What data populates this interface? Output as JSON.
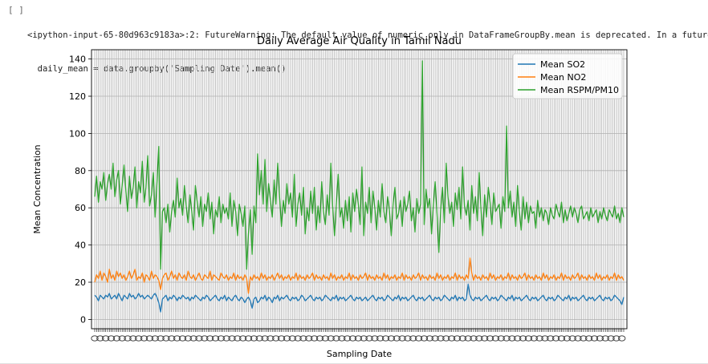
{
  "cell": {
    "prompt": "[ ]",
    "stderr_lines": [
      "<ipython-input-65-80d963c9183a>:2: FutureWarning: The default value of numeric_only in DataFrameGroupBy.mean is deprecated. In a future version, nu",
      "  daily_mean = data.groupby('Sampling Date').mean()"
    ]
  },
  "chart_data": {
    "type": "line",
    "title": "Daily Average Air Quality in Tamil Nadu",
    "xlabel": "Sampling Date",
    "ylabel": "Mean Concentration",
    "ylim": [
      -5,
      145
    ],
    "yticks": [
      0,
      20,
      40,
      60,
      80,
      100,
      120,
      140
    ],
    "grid": true,
    "legend_position": "top-right",
    "n_points": 290,
    "series": [
      {
        "name": "Mean SO2",
        "color": "#1f77b4",
        "values": [
          13,
          12,
          10,
          13,
          12,
          11,
          13,
          12,
          14,
          11,
          12,
          13,
          11,
          14,
          12,
          10,
          13,
          12,
          11,
          14,
          12,
          13,
          11,
          12,
          14,
          12,
          13,
          11,
          12,
          13,
          12,
          11,
          13,
          14,
          12,
          9,
          4,
          11,
          12,
          13,
          10,
          12,
          11,
          13,
          12,
          10,
          12,
          11,
          13,
          12,
          11,
          12,
          10,
          12,
          11,
          13,
          12,
          11,
          10,
          12,
          11,
          13,
          12,
          10,
          11,
          12,
          13,
          11,
          10,
          12,
          11,
          13,
          10,
          12,
          11,
          10,
          12,
          13,
          11,
          10,
          12,
          11,
          9,
          11,
          12,
          10,
          6,
          11,
          12,
          9,
          10,
          12,
          11,
          13,
          10,
          12,
          11,
          9,
          12,
          11,
          13,
          10,
          12,
          11,
          12,
          13,
          11,
          10,
          12,
          11,
          12,
          10,
          11,
          13,
          12,
          10,
          11,
          12,
          13,
          11,
          10,
          12,
          11,
          12,
          10,
          11,
          13,
          12,
          11,
          10,
          12,
          11,
          13,
          10,
          12,
          11,
          12,
          10,
          11,
          12,
          13,
          11,
          10,
          12,
          11,
          12,
          10,
          11,
          12,
          10,
          11,
          12,
          13,
          11,
          10,
          12,
          11,
          12,
          10,
          11,
          13,
          12,
          11,
          10,
          12,
          11,
          13,
          10,
          12,
          11,
          12,
          10,
          11,
          12,
          13,
          11,
          10,
          12,
          11,
          12,
          10,
          11,
          12,
          13,
          11,
          10,
          12,
          11,
          12,
          10,
          11,
          13,
          12,
          11,
          10,
          12,
          11,
          13,
          10,
          12,
          11,
          12,
          10,
          11,
          12,
          13,
          11,
          10,
          12,
          11,
          12,
          10,
          11,
          12,
          13,
          11,
          10,
          12,
          11,
          12,
          10,
          11,
          13,
          12,
          11,
          10,
          12,
          11,
          13,
          10,
          12,
          11,
          12,
          10,
          11,
          12,
          13,
          11,
          10,
          12,
          11,
          12,
          10,
          11,
          12,
          13,
          11,
          10,
          12,
          11,
          12,
          10,
          11,
          13,
          12,
          11,
          10,
          12,
          11,
          13,
          10,
          12,
          11,
          12,
          10,
          11,
          12,
          13,
          11,
          10,
          12,
          11,
          12,
          10,
          11,
          12,
          13,
          11,
          10,
          12,
          11,
          12,
          10,
          11,
          13,
          12,
          11,
          10,
          8,
          12,
          11,
          13,
          12
        ],
        "overrides": {
          "204": 19
        }
      },
      {
        "name": "Mean NO2",
        "color": "#ff7f0e",
        "values": [
          20,
          24,
          22,
          26,
          21,
          25,
          23,
          20,
          27,
          22,
          24,
          21,
          26,
          23,
          25,
          22,
          24,
          21,
          23,
          26,
          22,
          24,
          27,
          21,
          23,
          22,
          25,
          20,
          24,
          23,
          21,
          26,
          22,
          24,
          23,
          21,
          16,
          22,
          24,
          25,
          21,
          23,
          26,
          22,
          24,
          21,
          25,
          23,
          22,
          24,
          21,
          26,
          23,
          22,
          24,
          21,
          23,
          25,
          22,
          21,
          24,
          23,
          22,
          26,
          21,
          24,
          23,
          22,
          21,
          25,
          23,
          22,
          24,
          21,
          23,
          22,
          25,
          21,
          24,
          22,
          23,
          21,
          24,
          22,
          14,
          23,
          21,
          24,
          22,
          23,
          21,
          25,
          22,
          24,
          21,
          23,
          22,
          24,
          21,
          23,
          25,
          22,
          24,
          21,
          23,
          22,
          24,
          21,
          23,
          22,
          25,
          21,
          24,
          22,
          23,
          21,
          24,
          22,
          23,
          25,
          21,
          24,
          22,
          23,
          21,
          24,
          22,
          23,
          21,
          25,
          22,
          24,
          21,
          23,
          22,
          24,
          21,
          23,
          22,
          25,
          21,
          24,
          22,
          23,
          21,
          24,
          22,
          23,
          25,
          21,
          24,
          22,
          23,
          21,
          24,
          22,
          23,
          21,
          25,
          22,
          24,
          21,
          23,
          22,
          24,
          21,
          23,
          22,
          25,
          21,
          24,
          22,
          23,
          21,
          24,
          22,
          23,
          25,
          21,
          24,
          22,
          23,
          21,
          24,
          22,
          23,
          21,
          25,
          22,
          24,
          21,
          23,
          22,
          24,
          21,
          23,
          22,
          25,
          21,
          24,
          22,
          23,
          21,
          24,
          22,
          33,
          25,
          21,
          24,
          22,
          23,
          21,
          24,
          22,
          23,
          21,
          25,
          22,
          24,
          21,
          23,
          22,
          24,
          21,
          23,
          22,
          25,
          21,
          24,
          22,
          23,
          21,
          24,
          22,
          23,
          25,
          21,
          24,
          22,
          23,
          21,
          24,
          22,
          23,
          21,
          25,
          22,
          24,
          21,
          23,
          22,
          24,
          21,
          23,
          22,
          25,
          21,
          24,
          22,
          23,
          21,
          24,
          22,
          23,
          25,
          21,
          24,
          22,
          23,
          21,
          24,
          22,
          23,
          21,
          25,
          22,
          24,
          21,
          23,
          22,
          24,
          21,
          23,
          22,
          25,
          21,
          24,
          22,
          23,
          21,
          24,
          22,
          23,
          25,
          21,
          24,
          22,
          17,
          21,
          24,
          28,
          23
        ]
      },
      {
        "name": "Mean RSPM/PM10",
        "color": "#2ca02c",
        "values": [
          66,
          77,
          63,
          74,
          70,
          79,
          64,
          73,
          78,
          70,
          84,
          66,
          75,
          80,
          62,
          72,
          83,
          69,
          58,
          77,
          65,
          71,
          82,
          60,
          74,
          68,
          85,
          63,
          71,
          88,
          61,
          67,
          79,
          55,
          73,
          93,
          27,
          58,
          60,
          52,
          62,
          47,
          58,
          64,
          55,
          76,
          60,
          65,
          56,
          72,
          61,
          52,
          67,
          58,
          48,
          72,
          63,
          55,
          66,
          50,
          62,
          58,
          68,
          54,
          63,
          46,
          59,
          55,
          66,
          52,
          62,
          57,
          60,
          54,
          68,
          50,
          64,
          58,
          45,
          62,
          57,
          50,
          61,
          27,
          46,
          59,
          35,
          61,
          52,
          89,
          67,
          80,
          62,
          86,
          58,
          73,
          64,
          55,
          75,
          62,
          84,
          66,
          50,
          64,
          57,
          73,
          62,
          68,
          55,
          78,
          50,
          62,
          68,
          56,
          71,
          46,
          60,
          53,
          69,
          57,
          71,
          48,
          61,
          52,
          74,
          58,
          51,
          67,
          56,
          84,
          61,
          45,
          62,
          78,
          55,
          60,
          49,
          64,
          53,
          66,
          47,
          68,
          58,
          70,
          62,
          51,
          82,
          45,
          63,
          57,
          71,
          52,
          69,
          60,
          48,
          64,
          55,
          73,
          58,
          52,
          66,
          59,
          45,
          62,
          71,
          54,
          57,
          64,
          50,
          66,
          58,
          62,
          69,
          53,
          60,
          47,
          65,
          57,
          62,
          139,
          51,
          70,
          60,
          65,
          46,
          62,
          74,
          57,
          36,
          59,
          71,
          52,
          84,
          66,
          57,
          63,
          50,
          68,
          59,
          71,
          54,
          82,
          61,
          56,
          64,
          48,
          72,
          57,
          66,
          53,
          79,
          60,
          45,
          67,
          55,
          71,
          63,
          51,
          68,
          58,
          60,
          62,
          49,
          66,
          58,
          104,
          60,
          69,
          55,
          63,
          50,
          72,
          58,
          48,
          66,
          54,
          63,
          52,
          61,
          57,
          58,
          49,
          64,
          55,
          60,
          53,
          59,
          57,
          51,
          60,
          56,
          54,
          62,
          58,
          55,
          63,
          52,
          59,
          53,
          57,
          61,
          55,
          60,
          57,
          52,
          59,
          61,
          54,
          56,
          58,
          53,
          60,
          55,
          57,
          59,
          52,
          58,
          54,
          60,
          56,
          53,
          59,
          57,
          55,
          61,
          54,
          57,
          52,
          60,
          55
        ],
        "overrides": {}
      }
    ]
  }
}
